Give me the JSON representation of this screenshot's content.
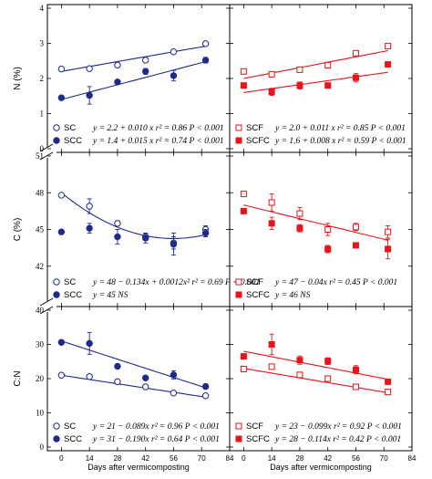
{
  "figure": {
    "y_axis_labels": [
      "N (%)",
      "C (%)",
      "C:N"
    ],
    "x_axis_label": "Days after vermicomposting"
  },
  "chart_data": [
    {
      "type": "scatter",
      "row": 0,
      "col": 0,
      "ylabel": "N (%)",
      "xlim": [
        -7,
        84
      ],
      "xticks": [
        0,
        14,
        28,
        42,
        56,
        70,
        84
      ],
      "ylim": [
        0,
        4
      ],
      "yticks": [
        0,
        1,
        2,
        3,
        4
      ],
      "x": [
        0,
        14,
        28,
        42,
        56,
        72
      ],
      "series": [
        {
          "name": "SC",
          "color": "#1f2a8a",
          "marker": "open-circle",
          "values": [
            2.27,
            2.28,
            2.38,
            2.52,
            2.76,
            2.99
          ],
          "errors": [
            0.04,
            0.05,
            0.05,
            0.05,
            0.05,
            0.05
          ],
          "fit": {
            "kind": "linear",
            "coefficients": [
              2.2,
              0.01
            ],
            "x_range": [
              0,
              72
            ]
          },
          "equation": "y = 2.2 + 0.010 x  r² = 0.86  P < 0.001"
        },
        {
          "name": "SCC",
          "color": "#1f2a8a",
          "marker": "filled-circle",
          "values": [
            1.45,
            1.52,
            1.9,
            2.2,
            2.08,
            2.52
          ],
          "errors": [
            0.03,
            0.25,
            0.05,
            0.08,
            0.15,
            0.08
          ],
          "fit": {
            "kind": "linear",
            "coefficients": [
              1.4,
              0.015
            ],
            "x_range": [
              0,
              72
            ]
          },
          "equation": "y = 1.4 + 0.015 x  r² = 0.74  P < 0.001"
        }
      ]
    },
    {
      "type": "scatter",
      "row": 0,
      "col": 1,
      "ylabel": "",
      "xlim": [
        -7,
        84
      ],
      "xticks": [
        0,
        14,
        28,
        42,
        56,
        70,
        84
      ],
      "ylim": [
        0,
        4
      ],
      "yticks": [
        0,
        1,
        2,
        3,
        4
      ],
      "x": [
        0,
        14,
        28,
        42,
        56,
        72
      ],
      "series": [
        {
          "name": "SCF",
          "color": "#e8131b",
          "marker": "open-square",
          "values": [
            2.2,
            2.12,
            2.25,
            2.38,
            2.72,
            2.92
          ],
          "errors": [
            0.05,
            0.05,
            0.05,
            0.08,
            0.05,
            0.05
          ],
          "fit": {
            "kind": "linear",
            "coefficients": [
              2.0,
              0.011
            ],
            "x_range": [
              0,
              72
            ]
          },
          "equation": "y = 2.0 + 0.011 x  r² = 0.85  P < 0.001"
        },
        {
          "name": "SCFC",
          "color": "#e8131b",
          "marker": "filled-square",
          "values": [
            1.8,
            1.62,
            1.8,
            1.8,
            2.02,
            2.4
          ],
          "errors": [
            0.04,
            0.1,
            0.1,
            0.05,
            0.12,
            0.05
          ],
          "fit": {
            "kind": "linear",
            "coefficients": [
              1.6,
              0.008
            ],
            "x_range": [
              0,
              72
            ]
          },
          "equation": "y = 1.6 + 0.008 x  r² = 0.59  P < 0.001"
        }
      ]
    },
    {
      "type": "scatter",
      "row": 1,
      "col": 0,
      "ylabel": "C (%)",
      "xlim": [
        -7,
        84
      ],
      "xticks": [
        0,
        14,
        28,
        42,
        56,
        70,
        84
      ],
      "ylim": [
        39,
        51
      ],
      "yticks": [
        42,
        45,
        48,
        51
      ],
      "x": [
        0,
        14,
        28,
        42,
        56,
        72
      ],
      "series": [
        {
          "name": "SC",
          "color": "#1f2a8a",
          "marker": "open-circle",
          "values": [
            47.8,
            46.9,
            45.5,
            44.4,
            43.9,
            45.0
          ],
          "errors": [
            0.1,
            0.6,
            0.2,
            0.3,
            0.5,
            0.3
          ],
          "fit": {
            "kind": "quadratic",
            "coefficients": [
              48,
              -0.134,
              0.0012
            ],
            "x_range": [
              0,
              72
            ]
          },
          "equation": "y = 48 − 0.134x + 0.0012x²  r² = 0.69  P < 0.001"
        },
        {
          "name": "SCC",
          "color": "#1f2a8a",
          "marker": "filled-circle",
          "values": [
            44.8,
            45.1,
            44.4,
            44.3,
            43.8,
            44.7
          ],
          "errors": [
            0.05,
            0.4,
            0.6,
            0.4,
            0.9,
            0.3
          ],
          "fit": null,
          "equation": "y = 45  NS"
        }
      ]
    },
    {
      "type": "scatter",
      "row": 1,
      "col": 1,
      "ylabel": "",
      "xlim": [
        -7,
        84
      ],
      "xticks": [
        0,
        14,
        28,
        42,
        56,
        70,
        84
      ],
      "ylim": [
        39,
        51
      ],
      "yticks": [
        42,
        45,
        48,
        51
      ],
      "x": [
        0,
        14,
        28,
        42,
        56,
        72
      ],
      "series": [
        {
          "name": "SCF",
          "color": "#e8131b",
          "marker": "open-square",
          "values": [
            47.9,
            47.2,
            46.3,
            45.0,
            45.2,
            44.8
          ],
          "errors": [
            0.1,
            0.7,
            0.5,
            0.5,
            0.3,
            0.5
          ],
          "fit": {
            "kind": "linear",
            "coefficients": [
              47,
              -0.04
            ],
            "x_range": [
              0,
              72
            ]
          },
          "equation": "y = 47 − 0.04x  r² = 0.45  P < 0.001"
        },
        {
          "name": "SCFC",
          "color": "#e8131b",
          "marker": "filled-square",
          "values": [
            46.5,
            45.5,
            45.1,
            43.4,
            43.7,
            43.4
          ],
          "errors": [
            0.1,
            0.5,
            0.3,
            0.3,
            0.1,
            0.8
          ],
          "fit": null,
          "equation": "y = 46  NS"
        }
      ]
    },
    {
      "type": "scatter",
      "row": 2,
      "col": 0,
      "ylabel": "C:N",
      "xlim": [
        -7,
        84
      ],
      "xticks": [
        0,
        14,
        28,
        42,
        56,
        70,
        84
      ],
      "ylim": [
        0,
        40
      ],
      "yticks": [
        0,
        10,
        20,
        30,
        40
      ],
      "x": [
        0,
        14,
        28,
        42,
        56,
        72
      ],
      "series": [
        {
          "name": "SC",
          "color": "#1f2a8a",
          "marker": "open-circle",
          "values": [
            21,
            20.6,
            19.1,
            17.6,
            15.8,
            15.0
          ],
          "errors": [
            0.4,
            0.5,
            0.4,
            0.3,
            0.3,
            0.3
          ],
          "fit": {
            "kind": "linear",
            "coefficients": [
              21,
              -0.089
            ],
            "x_range": [
              0,
              72
            ]
          },
          "equation": "y = 21 − 0.089x  r² = 0.96  P < 0.001"
        },
        {
          "name": "SCC",
          "color": "#1f2a8a",
          "marker": "filled-circle",
          "values": [
            30.6,
            30.3,
            23.6,
            20.2,
            21.1,
            17.7
          ],
          "errors": [
            0.4,
            3.2,
            0.4,
            0.5,
            1.2,
            0.7
          ],
          "fit": {
            "kind": "linear",
            "coefficients": [
              31,
              -0.19
            ],
            "x_range": [
              0,
              72
            ]
          },
          "equation": "y = 31 − 0.190x  r² = 0.64  P < 0.001"
        }
      ]
    },
    {
      "type": "scatter",
      "row": 2,
      "col": 1,
      "ylabel": "",
      "xlim": [
        -7,
        84
      ],
      "xticks": [
        0,
        14,
        28,
        42,
        56,
        70,
        84
      ],
      "ylim": [
        0,
        40
      ],
      "yticks": [
        0,
        10,
        20,
        30,
        40
      ],
      "x": [
        0,
        14,
        28,
        42,
        56,
        72
      ],
      "series": [
        {
          "name": "SCF",
          "color": "#e8131b",
          "marker": "open-square",
          "values": [
            22.8,
            23.5,
            21.1,
            20.0,
            17.6,
            16.1
          ],
          "errors": [
            0.5,
            0.5,
            0.5,
            0.5,
            0.5,
            0.5
          ],
          "fit": {
            "kind": "linear",
            "coefficients": [
              23,
              -0.099
            ],
            "x_range": [
              0,
              72
            ]
          },
          "equation": "y = 23 − 0.099x  r² = 0.92  P < 0.001"
        },
        {
          "name": "SCFC",
          "color": "#e8131b",
          "marker": "filled-square",
          "values": [
            26.5,
            30.0,
            25.4,
            25.1,
            22.6,
            19.1
          ],
          "errors": [
            0.6,
            3.0,
            1.2,
            1.0,
            1.2,
            0.7
          ],
          "fit": {
            "kind": "linear",
            "coefficients": [
              28,
              -0.114
            ],
            "x_range": [
              0,
              72
            ]
          },
          "equation": "y = 28 − 0.114x  r² = 0.42  P < 0.001"
        }
      ]
    }
  ]
}
